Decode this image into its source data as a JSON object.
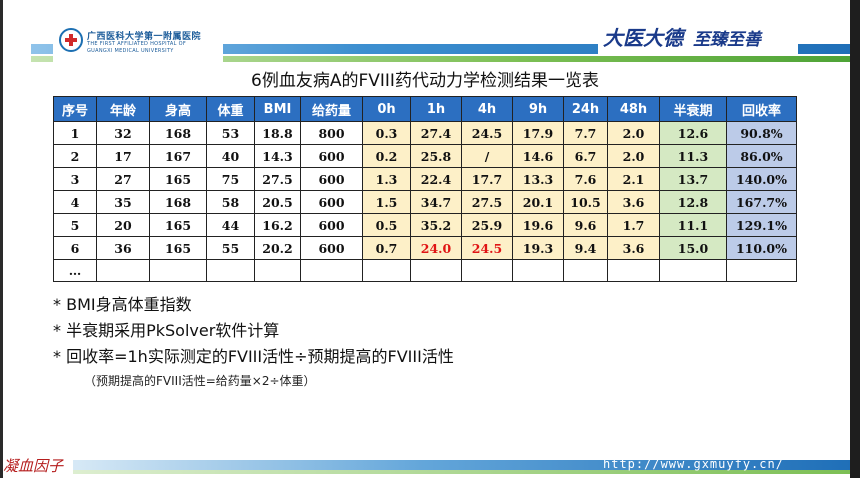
{
  "header": {
    "hospital_name_cn": "广西医科大学第一附属医院",
    "hospital_name_en_line1": "THE FIRST AFFILIATED HOSPITAL OF",
    "hospital_name_en_line2": "GUANGXI MEDICAL UNIVERSITY",
    "motto_part1": "大医大德",
    "motto_part2": "至臻至善"
  },
  "title": "6例血友病A的FVIII药代动力学检测结果一览表",
  "table": {
    "headers": [
      "序号",
      "年龄",
      "身高",
      "体重",
      "BMI",
      "给药量",
      "0h",
      "1h",
      "4h",
      "9h",
      "24h",
      "48h",
      "半衰期",
      "回收率"
    ],
    "rows": [
      [
        "1",
        "32",
        "168",
        "53",
        "18.8",
        "800",
        "0.3",
        "27.4",
        "24.5",
        "17.9",
        "7.7",
        "2.0",
        "12.6",
        "90.8%"
      ],
      [
        "2",
        "17",
        "167",
        "40",
        "14.3",
        "600",
        "0.2",
        "25.8",
        "/",
        "14.6",
        "6.7",
        "2.0",
        "11.3",
        "86.0%"
      ],
      [
        "3",
        "27",
        "165",
        "75",
        "27.5",
        "600",
        "1.3",
        "22.4",
        "17.7",
        "13.3",
        "7.6",
        "2.1",
        "13.7",
        "140.0%"
      ],
      [
        "4",
        "35",
        "168",
        "58",
        "20.5",
        "600",
        "1.5",
        "34.7",
        "27.5",
        "20.1",
        "10.5",
        "3.6",
        "12.8",
        "167.7%"
      ],
      [
        "5",
        "20",
        "165",
        "44",
        "16.2",
        "600",
        "0.5",
        "35.2",
        "25.9",
        "19.6",
        "9.6",
        "1.7",
        "11.1",
        "129.1%"
      ],
      [
        "6",
        "36",
        "165",
        "55",
        "20.2",
        "600",
        "0.7",
        "24.0",
        "24.5",
        "19.3",
        "9.4",
        "3.6",
        "15.0",
        "110.0%"
      ],
      [
        "…",
        "",
        "",
        "",
        "",
        "",
        "",
        "",
        "",
        "",
        "",
        "",
        "",
        ""
      ]
    ]
  },
  "notes": {
    "note1": "* BMI身高体重指数",
    "note2": "* 半衰期采用PkSolver软件计算",
    "note3": "* 回收率=1h实际测定的FVIII活性÷预期提高的FVIII活性",
    "note4": "（预期提高的FVIII活性=给药量×2÷体重）"
  },
  "footer": {
    "url": "http://www.gxmuyfy.cn/",
    "logo_text": "凝血因子"
  },
  "colors": {
    "header_blue": "#2c6fc1",
    "pk_yellow": "#fdf0c8",
    "halflife_green": "#d5e9c3",
    "recovery_blue": "#bccbe8",
    "highlight_red": "#e01515"
  }
}
